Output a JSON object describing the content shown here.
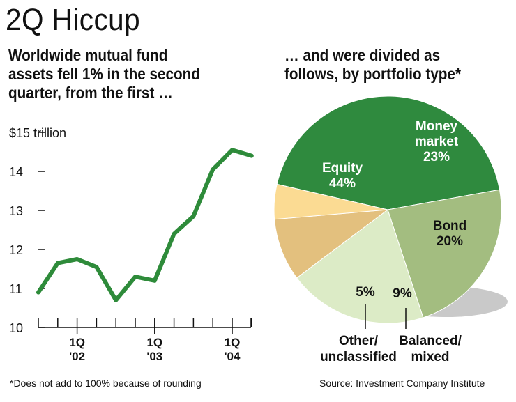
{
  "title": "2Q Hiccup",
  "left_subtitle": [
    "Worldwide mutual fund",
    "assets fell 1% in the second",
    "quarter, from the first …"
  ],
  "right_subtitle": [
    "… and were divided as",
    "follows, by portfolio type*"
  ],
  "footnote": "*Does not add to 100% because of rounding",
  "source": "Source: Investment Company Institute",
  "colors": {
    "line": "#2e8b3a",
    "equity": "#2f8a3e",
    "money_market": "#a3bd80",
    "bond": "#dcebc6",
    "balanced": "#e3c07e",
    "other": "#fbdb93",
    "shadow": "#c9c9c9"
  },
  "chart_data": [
    {
      "type": "line",
      "title": "",
      "xlabel": "",
      "ylabel": "",
      "y_unit_label": "$15 trillion",
      "ylim": [
        10,
        15
      ],
      "yticks": [
        10,
        11,
        12,
        13,
        14,
        15
      ],
      "ytick_labels": [
        "10",
        "11",
        "12",
        "13",
        "14",
        "$15 trillion"
      ],
      "x_ticks": [
        {
          "label_top": "1Q",
          "label_bottom": "'02"
        },
        {
          "label_top": "1Q",
          "label_bottom": "'03"
        },
        {
          "label_top": "1Q",
          "label_bottom": "'04"
        }
      ],
      "quarters": [
        "3Q '01",
        "4Q '01",
        "1Q '02",
        "2Q '02",
        "3Q '02",
        "4Q '02",
        "1Q '03",
        "2Q '03",
        "3Q '03",
        "4Q '03",
        "1Q '04",
        "2Q '04"
      ],
      "values": [
        10.9,
        11.65,
        11.75,
        11.55,
        10.7,
        11.3,
        11.2,
        12.4,
        12.85,
        14.05,
        14.55,
        14.4
      ],
      "grid": false
    },
    {
      "type": "pie",
      "slices": [
        {
          "label_lines": [
            "Equity"
          ],
          "value": 44,
          "value_label": "44%"
        },
        {
          "label_lines": [
            "Money",
            "market"
          ],
          "value": 23,
          "value_label": "23%"
        },
        {
          "label_lines": [
            "Bond"
          ],
          "value": 20,
          "value_label": "20%"
        },
        {
          "label_lines": [
            "Balanced/",
            "mixed"
          ],
          "value": 9,
          "value_label": "9%"
        },
        {
          "label_lines": [
            "Other/",
            "unclassified"
          ],
          "value": 5,
          "value_label": "5%"
        }
      ]
    }
  ]
}
